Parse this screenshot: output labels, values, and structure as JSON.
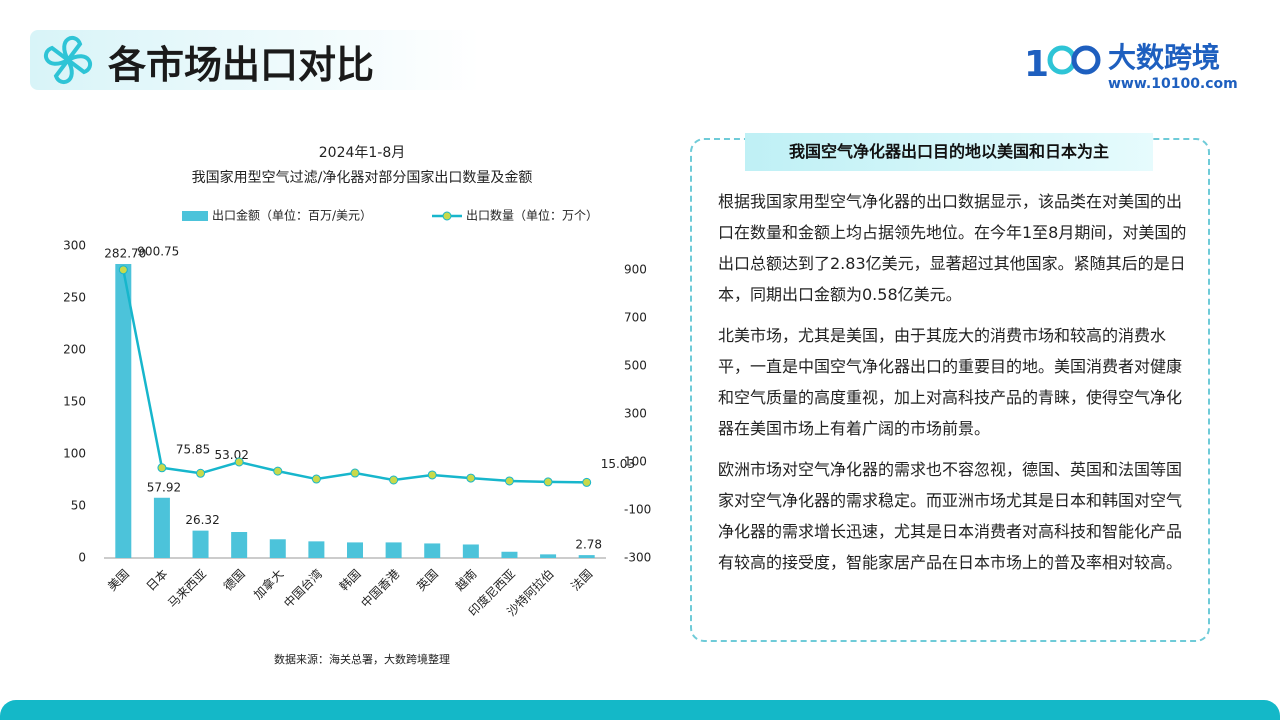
{
  "header": {
    "title": "各市场出口对比",
    "brand": "大数跨境",
    "url": "www.10100.com"
  },
  "chart_data": {
    "type": "bar-line",
    "title": "2024年1-8月",
    "subtitle": "我国家用型空气过滤/净化器对部分国家出口数量及金额",
    "source": "数据来源：海关总署，大数跨境整理",
    "categories": [
      "美国",
      "日本",
      "马来西亚",
      "德国",
      "加拿大",
      "中国台湾",
      "韩国",
      "中国香港",
      "英国",
      "越南",
      "印度尼西亚",
      "沙特阿拉伯",
      "法国"
    ],
    "series": [
      {
        "name": "出口金额（单位：百万/美元）",
        "type": "bar",
        "color": "#4cc3da",
        "values": [
          282.7,
          57.92,
          26.32,
          25,
          18,
          16,
          15,
          15,
          14,
          13,
          6,
          3.5,
          2.78
        ],
        "value_labels": [
          "282.70",
          "57.92",
          "26.32",
          null,
          null,
          null,
          null,
          null,
          null,
          null,
          null,
          null,
          "2.78"
        ]
      },
      {
        "name": "出口数量（单位：万个）",
        "type": "line",
        "axis": "y2",
        "color": "#17b6cc",
        "marker_color": "#c9d94a",
        "values": [
          900.75,
          75.85,
          53.02,
          100,
          62,
          29,
          54,
          25,
          46,
          33,
          21,
          17,
          15.03
        ],
        "value_labels": [
          "900.75",
          "75.85",
          "53.02",
          null,
          null,
          null,
          null,
          null,
          null,
          null,
          null,
          null,
          "15.03"
        ]
      }
    ],
    "ylim": [
      0,
      300
    ],
    "yticks": [
      0,
      50,
      100,
      150,
      200,
      250,
      300
    ],
    "y2lim": [
      -300,
      1000
    ],
    "y2ticks": [
      -300,
      -100,
      100,
      300,
      500,
      700,
      900
    ],
    "legend": "top"
  },
  "panel": {
    "title": "我国空气净化器出口目的地以美国和日本为主",
    "paragraphs": [
      "根据我国家用型空气净化器的出口数据显示，该品类在对美国的出口在数量和金额上均占据领先地位。在今年1至8月期间，对美国的出口总额达到了2.83亿美元，显著超过其他国家。紧随其后的是日本，同期出口金额为0.58亿美元。",
      "北美市场，尤其是美国，由于其庞大的消费市场和较高的消费水平，一直是中国空气净化器出口的重要目的地。美国消费者对健康和空气质量的高度重视，加上对高科技产品的青睐，使得空气净化器在美国市场上有着广阔的市场前景。",
      "欧洲市场对空气净化器的需求也不容忽视，德国、英国和法国等国家对空气净化器的需求稳定。而亚洲市场尤其是日本和韩国对空气净化器的需求增长迅速，尤其是日本消费者对高科技和智能化产品有较高的接受度，智能家居产品在日本市场上的普及率相对较高。"
    ]
  }
}
